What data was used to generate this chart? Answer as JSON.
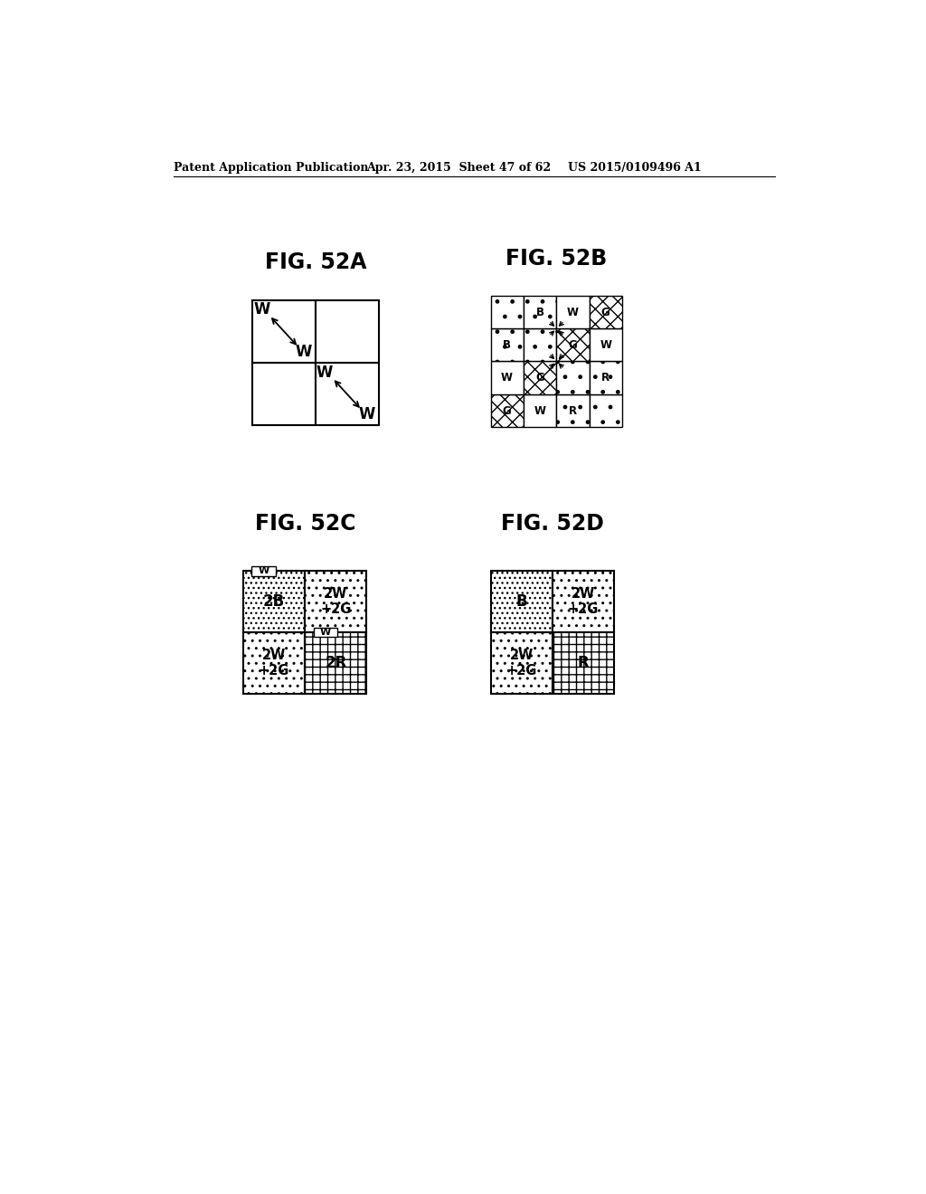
{
  "bg_color": "#ffffff",
  "header_text": "Patent Application Publication",
  "header_date": "Apr. 23, 2015  Sheet 47 of 62",
  "header_patent": "US 2015/0109496 A1"
}
